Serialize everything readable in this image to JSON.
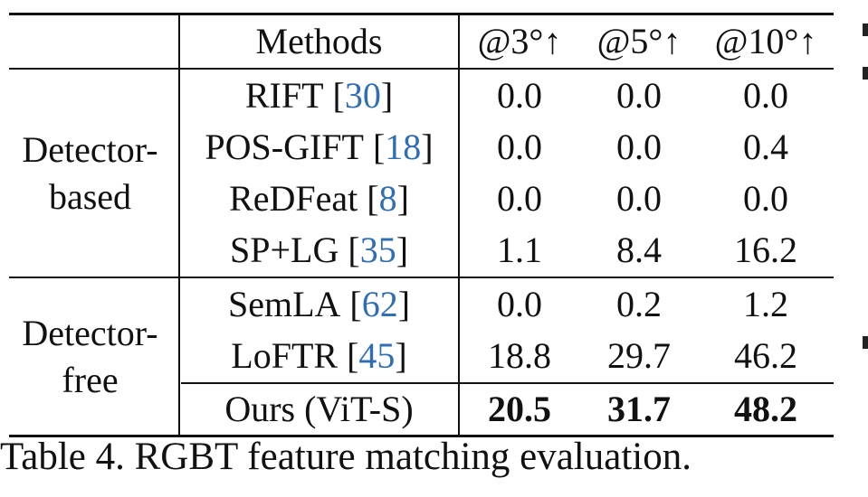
{
  "table": {
    "headers": [
      "Methods",
      "@3°↑",
      "@5°↑",
      "@10°↑"
    ],
    "groups": [
      {
        "label_lines": [
          "Detector-",
          "based"
        ],
        "rows": [
          {
            "method": "RIFT",
            "cite": "30",
            "v3": "0.0",
            "v5": "0.0",
            "v10": "0.0",
            "bold": false
          },
          {
            "method": "POS-GIFT",
            "cite": "18",
            "v3": "0.0",
            "v5": "0.0",
            "v10": "0.4",
            "bold": false
          },
          {
            "method": "ReDFeat",
            "cite": "8",
            "v3": "0.0",
            "v5": "0.0",
            "v10": "0.0",
            "bold": false
          },
          {
            "method": "SP+LG",
            "cite": "35",
            "v3": "1.1",
            "v5": "8.4",
            "v10": "16.2",
            "bold": false
          }
        ]
      },
      {
        "label_lines": [
          "Detector-",
          "free"
        ],
        "rows": [
          {
            "method": "SemLA",
            "cite": "62",
            "v3": "0.0",
            "v5": "0.2",
            "v10": "1.2",
            "bold": false
          },
          {
            "method": "LoFTR",
            "cite": "45",
            "v3": "18.8",
            "v5": "29.7",
            "v10": "46.2",
            "bold": false
          },
          {
            "method": "Ours (ViT-S)",
            "cite": "",
            "v3": "20.5",
            "v5": "31.7",
            "v10": "48.2",
            "bold": true
          }
        ]
      }
    ]
  },
  "caption": "Table 4. RGBT feature matching evaluation."
}
